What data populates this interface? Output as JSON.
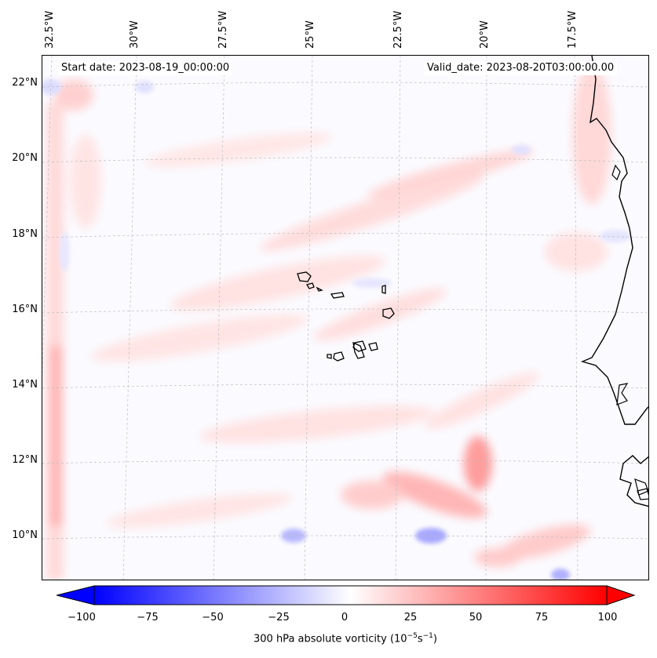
{
  "map": {
    "start_date": "Start date: 2023-08-19_00:00:00",
    "valid_date": "Valid_date: 2023-08-20T03:00:00.00",
    "longitude_labels": [
      "32.5°W",
      "30°W",
      "27.5°W",
      "25°W",
      "22.5°W",
      "20°W",
      "17.5°W"
    ],
    "latitude_labels": [
      "22°N",
      "20°N",
      "18°N",
      "16°N",
      "14°N",
      "12°N",
      "10°N"
    ],
    "extent": {
      "lon_min": -32.7,
      "lon_max": -15.5,
      "lat_min": 8.8,
      "lat_max": 22.8
    },
    "gridlines": "dashed light gray",
    "projection": "conic",
    "field": "300 hPa absolute vorticity",
    "colors": {
      "negative": "#0000ff",
      "neutral": "#ffffff",
      "positive": "#ff0000",
      "coastline": "#000000"
    }
  },
  "colorbar": {
    "ticks": [
      "−100",
      "−75",
      "−50",
      "−25",
      "0",
      "25",
      "50",
      "75",
      "100"
    ],
    "min": -100,
    "max": 100,
    "label_prefix": "300 hPa absolute vorticity (10",
    "label_exp1": "−5",
    "label_mid": "s",
    "label_exp2": "−1",
    "label_suffix": ")"
  }
}
